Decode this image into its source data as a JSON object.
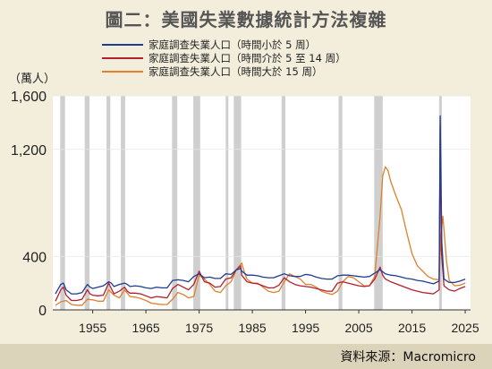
{
  "chart_data": {
    "type": "line",
    "title": "圖二：美國失業數據統計方法複雜",
    "ylabel": "（萬人）",
    "source": "資料來源：Macromicro",
    "x_ticks": [
      "1955",
      "1965",
      "1975",
      "1985",
      "1995",
      "2005",
      "2015",
      "2025"
    ],
    "y_ticks": [
      "0",
      "400",
      "1,200",
      "1,600"
    ],
    "xlim": [
      1947.5,
      2026
    ],
    "ylim": [
      0,
      1600
    ],
    "legend_position": "top",
    "recessions": [
      [
        1948.9,
        1949.8
      ],
      [
        1953.5,
        1954.4
      ],
      [
        1957.6,
        1958.3
      ],
      [
        1960.3,
        1961.1
      ],
      [
        1969.9,
        1970.9
      ],
      [
        1973.9,
        1975.2
      ],
      [
        1980.0,
        1980.5
      ],
      [
        1981.5,
        1982.9
      ],
      [
        1990.5,
        1991.2
      ],
      [
        2001.2,
        2001.9
      ],
      [
        2007.9,
        2009.5
      ],
      [
        2020.1,
        2020.3
      ]
    ],
    "series": [
      {
        "name": "家庭調查失業人口（時間小於 5 周）",
        "color": "#1f3d8f",
        "x": [
          1948,
          1949,
          1949.5,
          1950,
          1951,
          1952,
          1953,
          1954,
          1954.5,
          1955,
          1956,
          1957,
          1958,
          1958.5,
          1959,
          1960,
          1961,
          1961.5,
          1962,
          1963,
          1964,
          1965,
          1966,
          1967,
          1968,
          1969,
          1970,
          1971,
          1972,
          1973,
          1974,
          1975,
          1976,
          1977,
          1978,
          1979,
          1980,
          1981,
          1982,
          1982.8,
          1983,
          1984,
          1985,
          1986,
          1987,
          1988,
          1989,
          1990,
          1991,
          1992,
          1993,
          1994,
          1995,
          1996,
          1997,
          1998,
          1999,
          2000,
          2001,
          2002,
          2003,
          2004,
          2005,
          2006,
          2007,
          2008,
          2009,
          2009.5,
          2010,
          2011,
          2012,
          2013,
          2014,
          2015,
          2016,
          2017,
          2018,
          2019,
          2020.1,
          2020.3,
          2020.6,
          2021,
          2022,
          2023,
          2024,
          2025
        ],
        "values": [
          120,
          190,
          200,
          150,
          120,
          120,
          130,
          190,
          170,
          160,
          170,
          180,
          210,
          200,
          175,
          190,
          200,
          190,
          175,
          180,
          175,
          165,
          160,
          170,
          165,
          165,
          220,
          225,
          220,
          210,
          250,
          270,
          240,
          245,
          235,
          235,
          270,
          265,
          300,
          310,
          290,
          260,
          260,
          255,
          245,
          240,
          240,
          255,
          270,
          255,
          250,
          250,
          265,
          260,
          245,
          235,
          230,
          230,
          255,
          260,
          260,
          255,
          250,
          245,
          250,
          275,
          300,
          285,
          270,
          260,
          255,
          245,
          235,
          230,
          220,
          215,
          205,
          195,
          215,
          1450,
          500,
          230,
          205,
          205,
          215,
          230
        ]
      },
      {
        "name": "家庭調查失業人口（時間介於 5 至 14 周）",
        "color": "#b22030",
        "x": [
          1948,
          1949,
          1949.5,
          1950,
          1951,
          1952,
          1953,
          1954,
          1954.5,
          1955,
          1956,
          1957,
          1958,
          1958.5,
          1959,
          1960,
          1961,
          1961.5,
          1962,
          1963,
          1964,
          1965,
          1966,
          1967,
          1968,
          1969,
          1970,
          1971,
          1972,
          1973,
          1974,
          1975,
          1976,
          1977,
          1978,
          1979,
          1980,
          1981,
          1982,
          1982.8,
          1983,
          1984,
          1985,
          1986,
          1987,
          1988,
          1989,
          1990,
          1991,
          1992,
          1993,
          1994,
          1995,
          1996,
          1997,
          1998,
          1999,
          2000,
          2001,
          2002,
          2003,
          2004,
          2005,
          2006,
          2007,
          2008,
          2009,
          2009.5,
          2010,
          2011,
          2012,
          2013,
          2014,
          2015,
          2016,
          2017,
          2018,
          2019,
          2020.1,
          2020.3,
          2020.5,
          2021,
          2022,
          2023,
          2024,
          2025
        ],
        "values": [
          65,
          150,
          170,
          110,
          70,
          70,
          80,
          150,
          120,
          110,
          105,
          110,
          200,
          160,
          120,
          140,
          170,
          140,
          125,
          125,
          120,
          105,
          90,
          100,
          95,
          90,
          160,
          190,
          170,
          150,
          190,
          290,
          210,
          200,
          170,
          175,
          230,
          240,
          300,
          330,
          260,
          210,
          200,
          195,
          180,
          165,
          165,
          185,
          240,
          210,
          190,
          180,
          175,
          170,
          160,
          150,
          140,
          140,
          200,
          210,
          200,
          190,
          180,
          175,
          180,
          230,
          320,
          260,
          230,
          210,
          195,
          180,
          165,
          150,
          140,
          130,
          125,
          120,
          150,
          1380,
          450,
          180,
          150,
          140,
          160,
          175
        ]
      },
      {
        "name": "家庭調查失業人口（時間大於 15 周）",
        "color": "#e07f2c",
        "x": [
          1948,
          1949,
          1950,
          1951,
          1952,
          1953,
          1954,
          1955,
          1956,
          1957,
          1958,
          1959,
          1960,
          1961,
          1962,
          1963,
          1964,
          1965,
          1966,
          1967,
          1968,
          1969,
          1970,
          1971,
          1972,
          1973,
          1974,
          1975,
          1976,
          1977,
          1978,
          1979,
          1980,
          1981,
          1982,
          1983,
          1983.5,
          1984,
          1985,
          1986,
          1987,
          1988,
          1989,
          1990,
          1991,
          1992,
          1993,
          1994,
          1995,
          1996,
          1997,
          1998,
          1999,
          2000,
          2001,
          2002,
          2003,
          2004,
          2005,
          2006,
          2007,
          2008,
          2009,
          2009.5,
          2010,
          2010.5,
          2011,
          2012,
          2013,
          2014,
          2015,
          2016,
          2017,
          2018,
          2019,
          2020.1,
          2020.4,
          2020.8,
          2021,
          2021.5,
          2022,
          2023,
          2024,
          2025
        ],
        "values": [
          35,
          60,
          70,
          40,
          35,
          35,
          80,
          75,
          65,
          65,
          150,
          110,
          90,
          150,
          100,
          95,
          85,
          70,
          50,
          45,
          40,
          40,
          80,
          130,
          115,
          90,
          100,
          260,
          230,
          190,
          140,
          130,
          180,
          210,
          300,
          350,
          280,
          230,
          200,
          200,
          170,
          140,
          130,
          140,
          210,
          270,
          250,
          230,
          190,
          190,
          170,
          140,
          125,
          115,
          140,
          210,
          250,
          240,
          210,
          180,
          180,
          250,
          700,
          1000,
          1070,
          1040,
          960,
          850,
          750,
          580,
          420,
          330,
          290,
          250,
          230,
          225,
          560,
          700,
          600,
          360,
          220,
          180,
          185,
          200
        ]
      }
    ]
  }
}
